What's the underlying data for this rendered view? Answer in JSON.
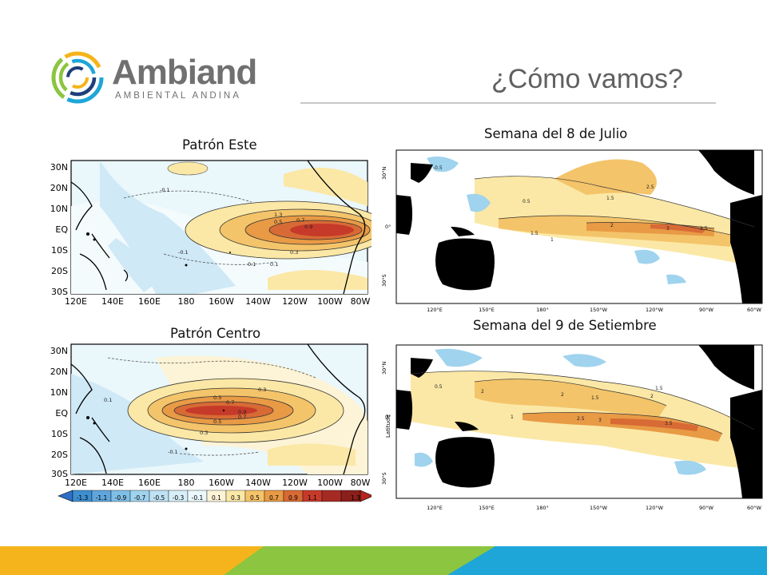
{
  "header": {
    "logo": {
      "name": "Ambiand",
      "tagline": "AMBIENTAL ANDINA",
      "icon": "swirl-logo-icon"
    },
    "title": "¿Cómo vamos?"
  },
  "colors": {
    "title_text": "#606060",
    "logo_text": "#707070",
    "land": "#000000",
    "ocean_neutral": "#ffffff",
    "warm_anomaly_scale": [
      "#fbe8a6",
      "#f4c46a",
      "#e89a45",
      "#d86a35",
      "#c63a2a"
    ],
    "cool_anomaly_scale": [
      "#d6eef7",
      "#9fd3ee",
      "#5fb4e0",
      "#3d8fd0"
    ],
    "footer_stripe": [
      "#f5b41c",
      "#8cc53f",
      "#1ea6d8"
    ]
  },
  "panels": {
    "east_pattern": {
      "caption": "Patrón  Este",
      "y_ticks": [
        "30N",
        "20N",
        "10N",
        "EQ",
        "10S",
        "20S",
        "30S"
      ],
      "x_ticks": [
        "120E",
        "140E",
        "160E",
        "180",
        "160W",
        "140W",
        "120W",
        "100W",
        "80W"
      ],
      "contour_labels": [
        "-0.1",
        "0.1",
        "0.1",
        "1.3",
        "0.7",
        "0.5",
        "0.9",
        "0.3",
        "-0.1"
      ]
    },
    "central_pattern": {
      "caption": "Patrón  Centro",
      "y_ticks": [
        "30N",
        "20N",
        "10N",
        "EQ",
        "10S",
        "20S",
        "30S"
      ],
      "x_ticks": [
        "120E",
        "140E",
        "160E",
        "180",
        "160W",
        "140W",
        "120W",
        "100W",
        "80W"
      ],
      "contour_labels": [
        "0.3",
        "0.5",
        "0.7",
        "0.9",
        "0.7",
        "0.5",
        "0.3",
        "-0.1",
        "0.1"
      ],
      "colorbar_labels": [
        "-1.3",
        "-1.1",
        "-0.9",
        "-0.7",
        "-0.5",
        "-0.3",
        "-0.1",
        "0.1",
        "0.3",
        "0.5",
        "0.7",
        "0.9",
        "1.1",
        "1.3"
      ]
    },
    "july_week": {
      "caption": "Semana del 8 de Julio",
      "y_ticks": [
        "30°N",
        "0°",
        "30°S"
      ],
      "x_ticks": [
        "120°E",
        "150°E",
        "180°",
        "150°W",
        "120°W",
        "90°W",
        "60°W"
      ],
      "contour_labels": [
        "0.5",
        "1.5",
        "2.5",
        "1",
        "2",
        "3",
        "3.5",
        "1.5",
        "-0.5"
      ]
    },
    "september_week": {
      "caption": "Semana del 9 de Setiembre",
      "y_label": "Latitude",
      "y_ticks": [
        "30°N",
        "0°",
        "30°S"
      ],
      "x_ticks": [
        "120°E",
        "150°E",
        "180°",
        "150°W",
        "120°W",
        "90°W",
        "60°W"
      ],
      "contour_labels": [
        "2",
        "1.5",
        "2",
        "1",
        "2.5",
        "3",
        "3.5",
        "2",
        "1.5",
        "0.5"
      ]
    }
  }
}
